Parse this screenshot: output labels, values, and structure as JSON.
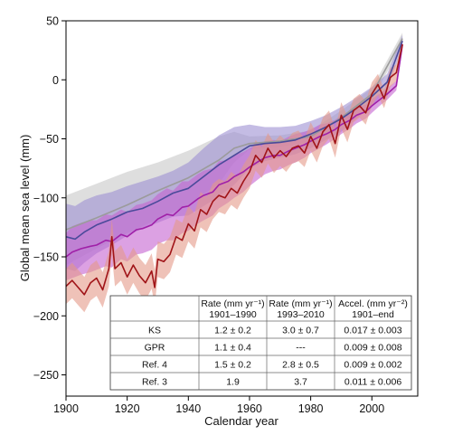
{
  "chart_data": {
    "type": "line",
    "title": "",
    "xlabel": "Calendar year",
    "ylabel": "Global mean sea level (mm)",
    "xlim": [
      1900,
      2015
    ],
    "ylim": [
      -268,
      50
    ],
    "x_ticks": [
      1900,
      1920,
      1940,
      1960,
      1980,
      2000
    ],
    "y_ticks": [
      50,
      0,
      -50,
      -100,
      -150,
      -200,
      -250
    ],
    "grid": false,
    "legend": "none",
    "series": [
      {
        "color": "#9b9b9b",
        "band_color": "#c8c8c8",
        "x": [
          1900,
          1910,
          1920,
          1930,
          1940,
          1950,
          1955,
          1960,
          1970,
          1980,
          1990,
          2000,
          2010
        ],
        "values": [
          -127,
          -117,
          -106,
          -94,
          -83,
          -68,
          -58,
          -54,
          -52,
          -48,
          -32,
          -12,
          35
        ],
        "lower": [
          -157,
          -143,
          -130,
          -118,
          -106,
          -88,
          -70,
          -59,
          -57,
          -53,
          -38,
          -17,
          30
        ],
        "upper": [
          -98,
          -88,
          -78,
          -70,
          -60,
          -48,
          -44,
          -48,
          -47,
          -43,
          -26,
          -7,
          40
        ]
      },
      {
        "color": "#4a4a9a",
        "band_color": "#9c8fd2",
        "x": [
          1900,
          1903,
          1906,
          1910,
          1915,
          1920,
          1925,
          1930,
          1935,
          1940,
          1945,
          1950,
          1955,
          1960,
          1965,
          1970,
          1975,
          1980,
          1985,
          1990,
          1995,
          2000,
          2005,
          2010
        ],
        "values": [
          -133,
          -135,
          -129,
          -123,
          -118,
          -112,
          -109,
          -103,
          -96,
          -92,
          -82,
          -72,
          -64,
          -56,
          -54,
          -53,
          -51,
          -46,
          -40,
          -33,
          -24,
          -14,
          -2,
          33
        ],
        "lower": [
          -160,
          -162,
          -155,
          -147,
          -140,
          -132,
          -126,
          -121,
          -116,
          -115,
          -107,
          -99,
          -89,
          -75,
          -69,
          -66,
          -63,
          -58,
          -51,
          -44,
          -33,
          -22,
          -9,
          28
        ],
        "upper": [
          -105,
          -107,
          -102,
          -98,
          -95,
          -90,
          -86,
          -82,
          -77,
          -70,
          -58,
          -47,
          -40,
          -38,
          -40,
          -40,
          -39,
          -35,
          -30,
          -23,
          -15,
          -6,
          5,
          38
        ]
      },
      {
        "color": "#a020a8",
        "band_color": "#c462d0",
        "x": [
          1900,
          1902,
          1905,
          1908,
          1910,
          1913,
          1915,
          1918,
          1920,
          1923,
          1925,
          1928,
          1930,
          1933,
          1935,
          1938,
          1940,
          1943,
          1945,
          1948,
          1950,
          1953,
          1955,
          1958,
          1960,
          1963,
          1965,
          1968,
          1970,
          1973,
          1975,
          1978,
          1980,
          1983,
          1985,
          1988,
          1990,
          1993,
          1995,
          1998,
          2000,
          2003,
          2005,
          2008,
          2010
        ],
        "values": [
          -150,
          -146,
          -143,
          -141,
          -140,
          -136,
          -137,
          -131,
          -133,
          -127,
          -126,
          -123,
          -118,
          -114,
          -115,
          -108,
          -107,
          -101,
          -98,
          -95,
          -89,
          -86,
          -82,
          -78,
          -74,
          -69,
          -66,
          -64,
          -64,
          -60,
          -58,
          -55,
          -52,
          -48,
          -46,
          -42,
          -38,
          -34,
          -30,
          -27,
          -22,
          -16,
          -12,
          -5,
          30
        ],
        "lower": [
          -170,
          -168,
          -165,
          -163,
          -161,
          -158,
          -159,
          -152,
          -154,
          -148,
          -147,
          -144,
          -139,
          -136,
          -136,
          -130,
          -128,
          -122,
          -119,
          -115,
          -109,
          -104,
          -100,
          -95,
          -90,
          -84,
          -80,
          -77,
          -76,
          -72,
          -70,
          -66,
          -62,
          -58,
          -55,
          -50,
          -46,
          -41,
          -37,
          -33,
          -28,
          -21,
          -17,
          -9,
          26
        ],
        "upper": [
          -130,
          -124,
          -121,
          -119,
          -119,
          -114,
          -115,
          -110,
          -112,
          -106,
          -105,
          -102,
          -97,
          -92,
          -94,
          -86,
          -86,
          -80,
          -77,
          -75,
          -69,
          -68,
          -64,
          -61,
          -58,
          -54,
          -52,
          -51,
          -52,
          -48,
          -46,
          -44,
          -42,
          -38,
          -37,
          -34,
          -30,
          -27,
          -23,
          -21,
          -16,
          -11,
          -7,
          -1,
          34
        ]
      },
      {
        "color": "#a01418",
        "band_color": "#e59a88",
        "x": [
          1900,
          1902,
          1904,
          1906,
          1908,
          1910,
          1912,
          1914,
          1915,
          1916,
          1918,
          1920,
          1922,
          1924,
          1926,
          1928,
          1929,
          1930,
          1932,
          1934,
          1936,
          1938,
          1940,
          1942,
          1944,
          1946,
          1948,
          1950,
          1952,
          1954,
          1956,
          1958,
          1960,
          1962,
          1964,
          1966,
          1968,
          1970,
          1972,
          1974,
          1976,
          1978,
          1980,
          1982,
          1984,
          1986,
          1988,
          1990,
          1992,
          1994,
          1996,
          1998,
          2000,
          2002,
          2004,
          2006,
          2008,
          2010
        ],
        "values": [
          -175,
          -170,
          -176,
          -182,
          -172,
          -168,
          -178,
          -160,
          -133,
          -160,
          -155,
          -167,
          -157,
          -166,
          -172,
          -162,
          -176,
          -152,
          -154,
          -148,
          -133,
          -136,
          -122,
          -128,
          -110,
          -114,
          -103,
          -98,
          -100,
          -92,
          -96,
          -86,
          -78,
          -64,
          -70,
          -58,
          -66,
          -60,
          -65,
          -58,
          -56,
          -62,
          -48,
          -58,
          -44,
          -38,
          -54,
          -30,
          -42,
          -26,
          -22,
          -28,
          -12,
          -4,
          -16,
          2,
          6,
          30
        ],
        "lower": [
          -190,
          -185,
          -191,
          -197,
          -187,
          -183,
          -193,
          -175,
          -148,
          -175,
          -170,
          -182,
          -172,
          -181,
          -187,
          -177,
          -191,
          -167,
          -169,
          -163,
          -148,
          -151,
          -137,
          -143,
          -125,
          -129,
          -118,
          -112,
          -114,
          -106,
          -110,
          -100,
          -92,
          -77,
          -83,
          -71,
          -79,
          -73,
          -78,
          -71,
          -69,
          -74,
          -60,
          -70,
          -56,
          -50,
          -66,
          -41,
          -53,
          -36,
          -32,
          -38,
          -22,
          -13,
          -24,
          -6,
          -1,
          25
        ],
        "upper": [
          -160,
          -155,
          -161,
          -167,
          -157,
          -153,
          -163,
          -145,
          -118,
          -145,
          -140,
          -152,
          -142,
          -151,
          -157,
          -147,
          -161,
          -137,
          -139,
          -133,
          -118,
          -121,
          -107,
          -113,
          -95,
          -99,
          -88,
          -84,
          -86,
          -78,
          -82,
          -72,
          -64,
          -51,
          -57,
          -45,
          -53,
          -47,
          -52,
          -45,
          -43,
          -50,
          -36,
          -46,
          -32,
          -26,
          -42,
          -19,
          -31,
          -16,
          -12,
          -18,
          -2,
          5,
          -8,
          10,
          13,
          35
        ]
      }
    ],
    "table": {
      "headers": [
        "",
        "Rate (mm yr⁻¹)\n1901–1990",
        "Rate (mm yr⁻¹)\n1993–2010",
        "Accel. (mm yr⁻²)\n1901–end"
      ],
      "rows": [
        [
          "KS",
          "1.2 ± 0.2",
          "3.0 ± 0.7",
          "0.017 ± 0.003"
        ],
        [
          "GPR",
          "1.1 ± 0.4",
          "---",
          "0.009 ± 0.008"
        ],
        [
          "Ref. 4",
          "1.5 ± 0.2",
          "2.8 ± 0.5",
          "0.009 ± 0.002"
        ],
        [
          "Ref. 3",
          "1.9",
          "3.7",
          "0.011 ± 0.006"
        ]
      ]
    }
  }
}
